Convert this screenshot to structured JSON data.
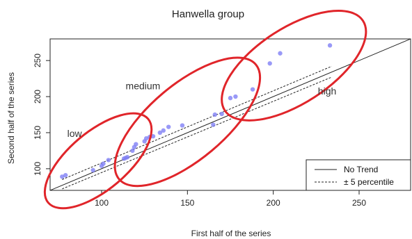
{
  "chart_data": {
    "type": "scatter",
    "title": "Hanwella group",
    "xlabel": "First half of the series",
    "ylabel": "Second half of the series",
    "xlim": [
      70,
      280
    ],
    "ylim": [
      70,
      280
    ],
    "xticks": [
      100,
      150,
      200,
      250
    ],
    "yticks": [
      100,
      150,
      200,
      250
    ],
    "grid": false,
    "point_color": "#7f7ff5",
    "highlight_color": "#e0252a",
    "points": [
      {
        "x": 77,
        "y": 89
      },
      {
        "x": 79,
        "y": 91
      },
      {
        "x": 95,
        "y": 98
      },
      {
        "x": 100,
        "y": 104
      },
      {
        "x": 101,
        "y": 107
      },
      {
        "x": 104,
        "y": 112
      },
      {
        "x": 113,
        "y": 114
      },
      {
        "x": 114,
        "y": 115
      },
      {
        "x": 115,
        "y": 116
      },
      {
        "x": 118,
        "y": 125
      },
      {
        "x": 119,
        "y": 130
      },
      {
        "x": 120,
        "y": 134
      },
      {
        "x": 125,
        "y": 138
      },
      {
        "x": 126,
        "y": 142
      },
      {
        "x": 128,
        "y": 144
      },
      {
        "x": 130,
        "y": 145
      },
      {
        "x": 134,
        "y": 150
      },
      {
        "x": 136,
        "y": 153
      },
      {
        "x": 139,
        "y": 158
      },
      {
        "x": 147,
        "y": 160
      },
      {
        "x": 165,
        "y": 161
      },
      {
        "x": 166,
        "y": 175
      },
      {
        "x": 170,
        "y": 176
      },
      {
        "x": 175,
        "y": 198
      },
      {
        "x": 178,
        "y": 200
      },
      {
        "x": 188,
        "y": 210
      },
      {
        "x": 198,
        "y": 246
      },
      {
        "x": 204,
        "y": 260
      },
      {
        "x": 233,
        "y": 271
      }
    ],
    "reference_lines": [
      {
        "name": "No Trend",
        "style": "solid",
        "from": [
          70,
          70
        ],
        "to": [
          280,
          280
        ]
      },
      {
        "name": "± 5 percentile",
        "style": "dashed",
        "from": [
          77,
          85
        ],
        "to": [
          234,
          242
        ]
      },
      {
        "name": "± 5 percentile",
        "style": "dashed",
        "from": [
          77,
          72
        ],
        "to": [
          234,
          227
        ]
      }
    ],
    "annotations": [
      {
        "text": "low",
        "x": 80,
        "y": 144
      },
      {
        "text": "medium",
        "x": 114,
        "y": 210
      },
      {
        "text": "high",
        "x": 226,
        "y": 203
      }
    ],
    "highlight_ellipses": [
      {
        "cx": 98,
        "cy": 111,
        "rx": 38,
        "ry": 17,
        "angle": 40
      },
      {
        "cx": 150,
        "cy": 165,
        "rx": 52,
        "ry": 22,
        "angle": 40
      },
      {
        "cx": 212,
        "cy": 243,
        "rx": 48,
        "ry": 22,
        "angle": 33
      }
    ],
    "legend": {
      "position": "bottom-right",
      "entries": [
        {
          "label": "No Trend",
          "style": "solid"
        },
        {
          "label": "± 5 percentile",
          "style": "dashed"
        }
      ]
    }
  }
}
